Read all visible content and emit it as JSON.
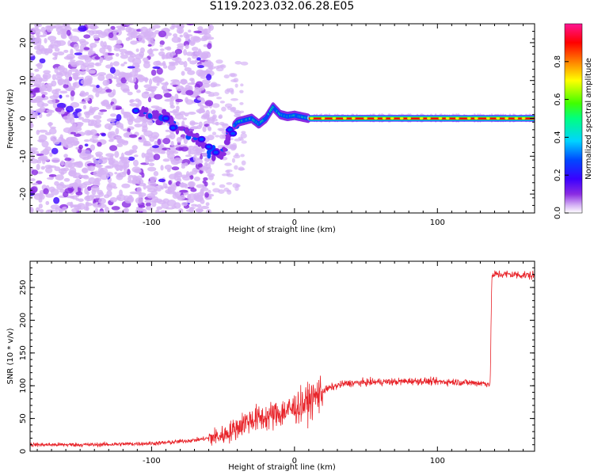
{
  "title": "S119.2023.032.06.28.E05",
  "colors": {
    "snr_line": "#e8242a",
    "axis": "#000000"
  },
  "chart_data": [
    {
      "type": "heatmap",
      "name": "spectrogram",
      "xlabel": "Height of straight line (km)",
      "ylabel": "Frequency (Hz)",
      "xlim": [
        -185,
        168
      ],
      "ylim": [
        -25,
        25
      ],
      "xticks": [
        -100,
        0,
        100
      ],
      "xticklabels": [
        "-100",
        "0",
        "100"
      ],
      "yticks": [
        -20,
        -10,
        0,
        10,
        20
      ],
      "yticklabels": [
        "-20",
        "-10",
        "0",
        "10",
        "20"
      ],
      "colorbar": {
        "label": "Normalized spectral amplitude",
        "range": [
          0,
          1
        ],
        "ticks": [
          0.0,
          0.2,
          0.4,
          0.6,
          0.8
        ],
        "ticklabels": [
          "0.0",
          "0.2",
          "0.4",
          "0.6",
          "0.8"
        ],
        "colormap": [
          "#ffffff",
          "#d6b3f5",
          "#8a2be2",
          "#3a00ff",
          "#0048ff",
          "#00d4ff",
          "#00ff80",
          "#40ff00",
          "#ffff00",
          "#ff8000",
          "#ff0000",
          "#ff1493"
        ]
      },
      "features": [
        {
          "description_x_range": [
            -185,
            -58
          ],
          "y_range": [
            -25,
            25
          ],
          "level": 0.15
        },
        {
          "description_x_range": [
            -110,
            -45
          ],
          "y_center": -3,
          "level": 0.3
        },
        {
          "description_x_range": [
            -40,
            10
          ],
          "y_center": 0.5,
          "level": 0.5
        },
        {
          "description_x_range": [
            10,
            168
          ],
          "y_center": 0,
          "level": 0.85
        }
      ],
      "ridge": [
        [
          -110,
          2
        ],
        [
          -90,
          0
        ],
        [
          -80,
          -3
        ],
        [
          -70,
          -5
        ],
        [
          -60,
          -8
        ],
        [
          -50,
          -10
        ],
        [
          -45,
          -3
        ],
        [
          -40,
          -1
        ],
        [
          -30,
          0
        ],
        [
          -25,
          -1.5
        ],
        [
          -20,
          0
        ],
        [
          -15,
          3
        ],
        [
          -10,
          1
        ],
        [
          -5,
          0.5
        ],
        [
          0,
          0.8
        ],
        [
          10,
          0
        ],
        [
          168,
          0
        ]
      ]
    },
    {
      "type": "line",
      "name": "snr",
      "xlabel": "Height of straight line (km)",
      "ylabel": "SNR (10 * v/v)",
      "xlim": [
        -185,
        168
      ],
      "ylim": [
        0,
        290
      ],
      "xticks": [
        -100,
        0,
        100
      ],
      "xticklabels": [
        "-100",
        "0",
        "100"
      ],
      "yticks": [
        0,
        50,
        100,
        150,
        200,
        250
      ],
      "yticklabels": [
        "0",
        "50",
        "100",
        "150",
        "200",
        "250"
      ],
      "series": [
        {
          "x": [
            -185,
            -160,
            -140,
            -120,
            -100,
            -90,
            -80,
            -70,
            -60,
            -50,
            -45,
            -40,
            -35,
            -30,
            -25,
            -20,
            -15,
            -10,
            -5,
            0,
            5,
            10,
            15,
            20,
            25,
            30,
            35,
            40,
            50,
            60,
            70,
            80,
            90,
            100,
            110,
            120,
            130,
            137,
            138,
            140,
            150,
            160,
            168
          ],
          "values": [
            10,
            10,
            10,
            11,
            12,
            13,
            15,
            17,
            20,
            24,
            30,
            36,
            44,
            48,
            50,
            52,
            55,
            58,
            62,
            66,
            70,
            76,
            84,
            92,
            97,
            100,
            103,
            104,
            105,
            106,
            106,
            107,
            107,
            106,
            106,
            105,
            104,
            103,
            265,
            270,
            270,
            269,
            268
          ]
        }
      ]
    }
  ]
}
